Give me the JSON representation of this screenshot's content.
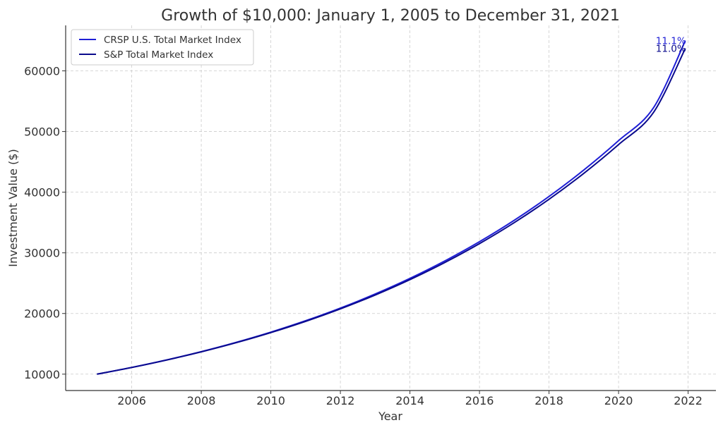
{
  "chart_data": {
    "type": "line",
    "title": "Growth of $10,000: January 1, 2005 to December 31, 2021",
    "xlabel": "Year",
    "ylabel": "Investment Value ($)",
    "xlim": [
      2004.1,
      2022.8
    ],
    "ylim": [
      7300,
      67500
    ],
    "xticks": [
      2006,
      2008,
      2010,
      2012,
      2014,
      2016,
      2018,
      2020,
      2022
    ],
    "yticks": [
      10000,
      20000,
      30000,
      40000,
      50000,
      60000
    ],
    "grid": true,
    "legend_position": "top-left",
    "series": [
      {
        "name": "CRSP U.S. Total Market Index",
        "color": "#1f1fd6",
        "end_label": "11.1%",
        "x": [
          2005,
          2006,
          2007,
          2008,
          2009,
          2010,
          2011,
          2012,
          2013,
          2014,
          2015,
          2016,
          2017,
          2018,
          2019,
          2020,
          2021,
          2021.92
        ],
        "y": [
          10000,
          11110,
          12343,
          13713,
          15235,
          16926,
          18805,
          20893,
          23212,
          25788,
          28651,
          31831,
          35364,
          39290,
          43651,
          48496,
          53879,
          65000
        ]
      },
      {
        "name": "S&P Total Market Index",
        "color": "#0a0a8c",
        "end_label": "11.0%",
        "x": [
          2005,
          2006,
          2007,
          2008,
          2009,
          2010,
          2011,
          2012,
          2013,
          2014,
          2015,
          2016,
          2017,
          2018,
          2019,
          2020,
          2021,
          2021.92
        ],
        "y": [
          10000,
          11100,
          12321,
          13676,
          15181,
          16851,
          18704,
          20762,
          23045,
          25580,
          28394,
          31518,
          34984,
          38833,
          43104,
          47846,
          53109,
          63700
        ]
      }
    ]
  }
}
